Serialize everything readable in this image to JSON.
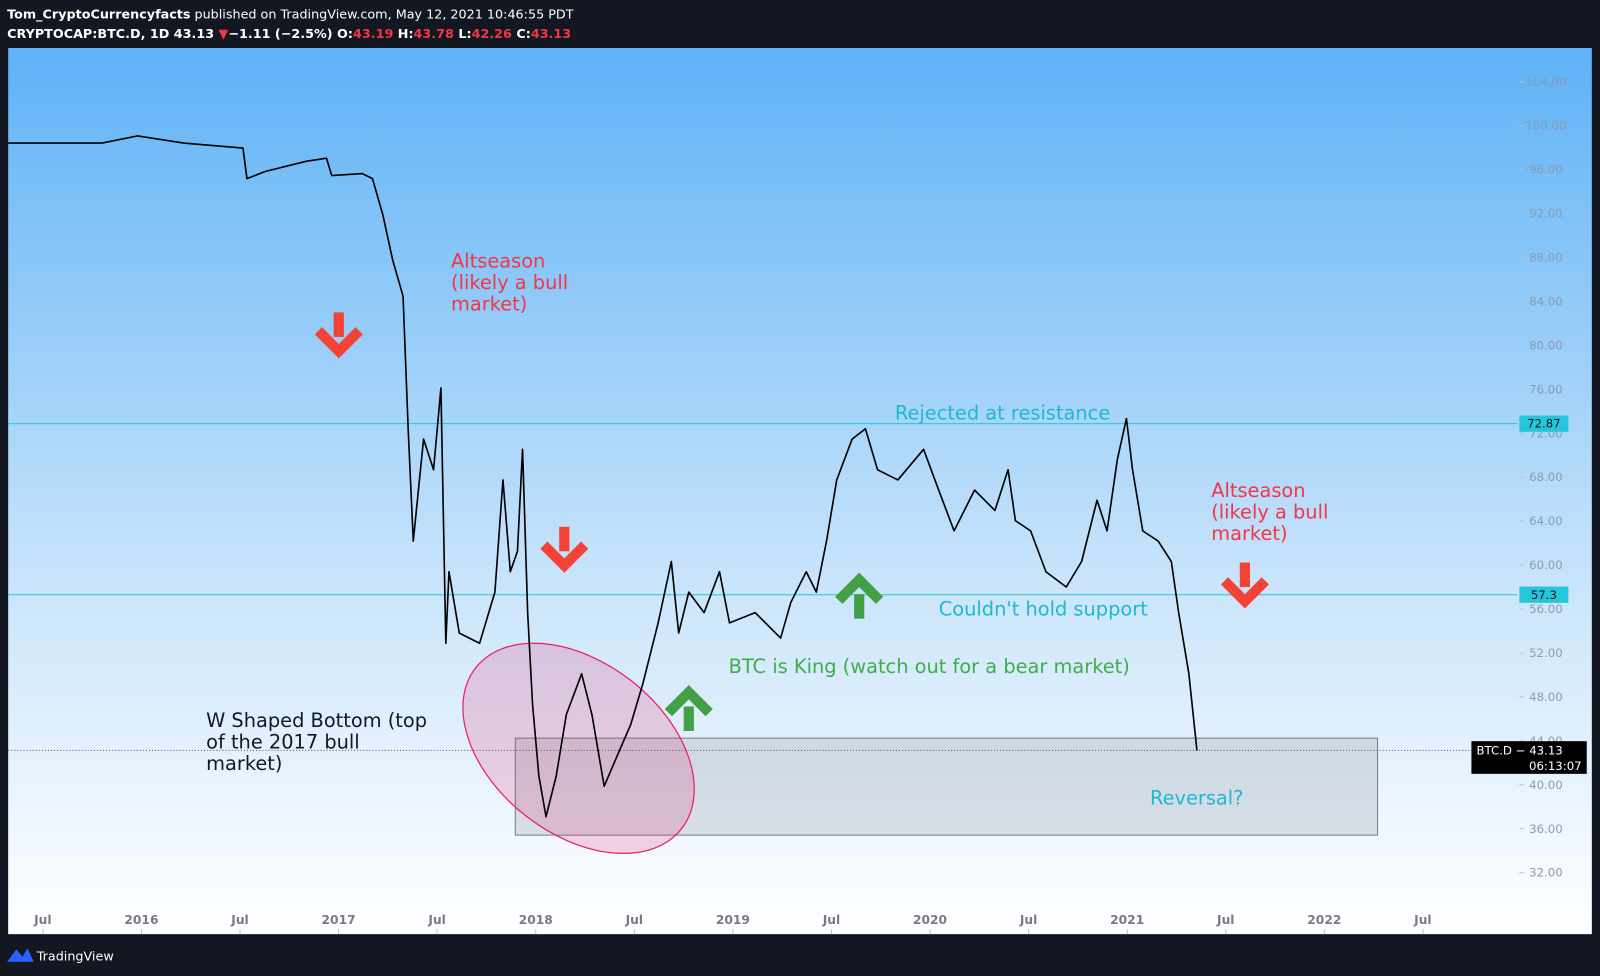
{
  "header": {
    "author": "Tom_CryptoCurrencyfacts",
    "published": " published on TradingView.com, May 12, 2021 10:46:55 PDT",
    "symbol": "CRYPTOCAP:BTC.D, 1D",
    "last": "43.13",
    "arrow": "▼",
    "change": "−1.11 (−2.5%)",
    "o_label": "O:",
    "o": "43.19",
    "h_label": "H:",
    "h": "43.78",
    "l_label": "L:",
    "l": "42.26",
    "c_label": "C:",
    "c": "43.13"
  },
  "footer": {
    "brand": "TradingView"
  },
  "chart_data": {
    "type": "line",
    "x": [
      2015.324,
      2015.8,
      2015.981,
      2016.214,
      2016.515,
      2016.535,
      2016.628,
      2016.835,
      2016.939,
      2016.965,
      2017.12,
      2017.172,
      2017.224,
      2017.275,
      2017.327,
      2017.353,
      2017.379,
      2017.431,
      2017.482,
      2017.519,
      2017.544,
      2017.56,
      2017.612,
      2017.715,
      2017.793,
      2017.834,
      2017.871,
      2017.907,
      2017.933,
      2017.959,
      2017.984,
      2018.016,
      2018.052,
      2018.104,
      2018.155,
      2018.233,
      2018.285,
      2018.347,
      2018.414,
      2018.481,
      2018.543,
      2018.621,
      2018.688,
      2018.725,
      2018.776,
      2018.854,
      2018.932,
      2018.983,
      2019.113,
      2019.242,
      2019.294,
      2019.372,
      2019.423,
      2019.475,
      2019.527,
      2019.605,
      2019.672,
      2019.734,
      2019.837,
      2019.967,
      2020.044,
      2020.122,
      2020.226,
      2020.329,
      2020.396,
      2020.433,
      2020.51,
      2020.588,
      2020.691,
      2020.769,
      2020.847,
      2020.898,
      2020.95,
      2020.996,
      2021.027,
      2021.079,
      2021.157,
      2021.224,
      2021.261,
      2021.313,
      2021.354
    ],
    "series": [
      {
        "name": "BTC.D",
        "color": "#000000",
        "values": [
          98.42,
          98.42,
          99.07,
          98.42,
          97.96,
          95.17,
          95.82,
          96.75,
          97.03,
          95.45,
          95.64,
          95.17,
          91.92,
          87.74,
          84.48,
          72.4,
          62.18,
          71.47,
          68.68,
          76.12,
          52.88,
          59.39,
          53.81,
          52.88,
          57.53,
          67.75,
          59.39,
          61.25,
          70.54,
          55.67,
          47.31,
          40.8,
          37.09,
          40.8,
          46.38,
          50.1,
          46.38,
          39.87,
          42.66,
          45.45,
          49.17,
          54.74,
          60.32,
          53.81,
          57.53,
          55.67,
          59.39,
          54.74,
          55.67,
          53.35,
          56.6,
          59.39,
          57.53,
          62.18,
          67.75,
          71.47,
          72.4,
          68.68,
          67.75,
          70.54,
          66.83,
          63.11,
          66.83,
          64.97,
          68.68,
          64.04,
          63.11,
          59.39,
          58.0,
          60.32,
          65.9,
          63.11,
          69.61,
          73.33,
          68.68,
          63.11,
          62.18,
          60.32,
          55.67,
          50.1,
          43.13
        ]
      }
    ],
    "xlim": [
      2015.324,
      2022.979
    ],
    "xticks": [
      {
        "value": 2015.5,
        "label": "Jul"
      },
      2016,
      {
        "value": 2016.5,
        "label": "Jul"
      },
      2017,
      {
        "value": 2017.5,
        "label": "Jul"
      },
      2018,
      {
        "value": 2018.5,
        "label": "Jul"
      },
      2019,
      {
        "value": 2019.5,
        "label": "Jul"
      },
      2020,
      {
        "value": 2020.5,
        "label": "Jul"
      },
      2021,
      {
        "value": 2021.5,
        "label": "Jul"
      },
      2022,
      {
        "value": 2022.5,
        "label": "Jul"
      }
    ],
    "ylim": [
      26.4,
      107.07
    ],
    "yticks": [
      {
        "value": 32,
        "label": "32.00"
      },
      {
        "value": 36,
        "label": "36.00"
      },
      {
        "value": 40,
        "label": "40.00"
      },
      {
        "value": 44,
        "label": "44.00"
      },
      {
        "value": 48,
        "label": "48.00"
      },
      {
        "value": 52,
        "label": "52.00"
      },
      {
        "value": 56,
        "label": "56.00"
      },
      {
        "value": 60,
        "label": "60.00"
      },
      {
        "value": 64,
        "label": "64.00"
      },
      {
        "value": 68,
        "label": "68.00"
      },
      {
        "value": 72,
        "label": "72.00"
      },
      {
        "value": 76,
        "label": "76.00"
      },
      {
        "value": 80,
        "label": "80.00"
      },
      {
        "value": 84,
        "label": "84.00"
      },
      {
        "value": 88,
        "label": "88.00"
      },
      {
        "value": 92,
        "label": "92.00"
      },
      {
        "value": 96,
        "label": "96.00"
      },
      {
        "value": 100,
        "label": "100.00"
      },
      {
        "value": 104,
        "label": "104.00"
      }
    ],
    "levels": [
      {
        "value": 72.87,
        "color": "#26c6da"
      },
      {
        "value": 57.3,
        "color": "#26c6da"
      }
    ],
    "price_line": {
      "value": 43.13,
      "label": "BTC.D − 43.13",
      "countdown": "06:13:07"
    },
    "annotations": [
      {
        "lines": [
          "Altseason",
          "(likely a bull",
          "market)"
        ],
        "color": "#f23645"
      },
      {
        "lines": [
          "Altseason",
          "(likely a bull",
          "market)"
        ],
        "color": "#f23645"
      },
      {
        "lines": [
          "Rejected at resistance"
        ],
        "color": "#1eb8cf"
      },
      {
        "lines": [
          "Couldn't hold support"
        ],
        "color": "#1eb8cf"
      },
      {
        "lines": [
          "BTC is King (watch out for a bear market)"
        ],
        "color": "#3fae49"
      },
      {
        "lines": [
          "W Shaped Bottom (top",
          "of the 2017 bull",
          "market)"
        ],
        "color": "#131722"
      },
      {
        "lines": [
          "Reversal?"
        ],
        "color": "#1eb8cf"
      }
    ]
  }
}
